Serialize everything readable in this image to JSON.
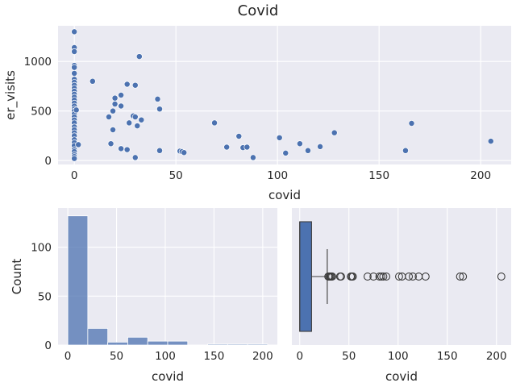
{
  "chart_data": [
    {
      "type": "scatter",
      "panel": "top",
      "title": "Covid",
      "xlabel": "covid",
      "ylabel": "er_visits",
      "xlim": [
        -8,
        215
      ],
      "ylim": [
        -40,
        1360
      ],
      "xticks": [
        0,
        50,
        100,
        150,
        200
      ],
      "yticks": [
        0,
        500,
        1000
      ],
      "color": "#4c72b0",
      "grid": true,
      "points": [
        [
          0,
          1300
        ],
        [
          0,
          1140
        ],
        [
          0,
          1100
        ],
        [
          0,
          960
        ],
        [
          0,
          940
        ],
        [
          0,
          880
        ],
        [
          0,
          820
        ],
        [
          0,
          790
        ],
        [
          0,
          760
        ],
        [
          0,
          730
        ],
        [
          0,
          700
        ],
        [
          0,
          670
        ],
        [
          0,
          640
        ],
        [
          0,
          610
        ],
        [
          0,
          580
        ],
        [
          0,
          550
        ],
        [
          0,
          520
        ],
        [
          0,
          500
        ],
        [
          0,
          470
        ],
        [
          0,
          440
        ],
        [
          0,
          410
        ],
        [
          0,
          380
        ],
        [
          0,
          340
        ],
        [
          0,
          310
        ],
        [
          0,
          280
        ],
        [
          0,
          250
        ],
        [
          0,
          210
        ],
        [
          0,
          180
        ],
        [
          0,
          150
        ],
        [
          0,
          110
        ],
        [
          0,
          90
        ],
        [
          0,
          60
        ],
        [
          0,
          40
        ],
        [
          0,
          20
        ],
        [
          1,
          510
        ],
        [
          2,
          160
        ],
        [
          9,
          800
        ],
        [
          17,
          440
        ],
        [
          18,
          170
        ],
        [
          19,
          310
        ],
        [
          19,
          500
        ],
        [
          20,
          570
        ],
        [
          20,
          630
        ],
        [
          23,
          550
        ],
        [
          23,
          660
        ],
        [
          23,
          120
        ],
        [
          26,
          110
        ],
        [
          26,
          770
        ],
        [
          27,
          380
        ],
        [
          29,
          450
        ],
        [
          30,
          440
        ],
        [
          30,
          760
        ],
        [
          30,
          30
        ],
        [
          31,
          350
        ],
        [
          32,
          1050
        ],
        [
          33,
          410
        ],
        [
          41,
          620
        ],
        [
          42,
          520
        ],
        [
          42,
          100
        ],
        [
          52,
          95
        ],
        [
          53,
          90
        ],
        [
          54,
          80
        ],
        [
          69,
          380
        ],
        [
          75,
          135
        ],
        [
          81,
          245
        ],
        [
          83,
          130
        ],
        [
          85,
          135
        ],
        [
          88,
          30
        ],
        [
          101,
          230
        ],
        [
          104,
          75
        ],
        [
          111,
          170
        ],
        [
          115,
          100
        ],
        [
          121,
          140
        ],
        [
          128,
          280
        ],
        [
          163,
          100
        ],
        [
          166,
          375
        ],
        [
          205,
          195
        ]
      ]
    },
    {
      "type": "bar",
      "panel": "bottom-left",
      "subtype": "histogram",
      "xlabel": "covid",
      "ylabel": "Count",
      "xlim": [
        -10,
        215
      ],
      "ylim": [
        0,
        140
      ],
      "xticks": [
        0,
        50,
        100,
        150,
        200
      ],
      "yticks": [
        0,
        50,
        100
      ],
      "bin_edges": [
        0,
        20.5,
        41,
        61.5,
        82,
        102.5,
        123,
        143.5,
        164,
        184.5,
        205
      ],
      "values": [
        132,
        17,
        3,
        8,
        4,
        4,
        0,
        1,
        1,
        1
      ],
      "color": "#4c72b0"
    },
    {
      "type": "box",
      "panel": "bottom-right",
      "xlabel": "covid",
      "xlim": [
        -8,
        215
      ],
      "xticks": [
        0,
        50,
        100,
        150,
        200
      ],
      "color": "#4c72b0",
      "q1": 0,
      "median": 0,
      "q3": 12,
      "whisker_low": 0,
      "whisker_high": 28,
      "outliers": [
        29,
        30,
        31,
        32,
        33,
        41,
        42,
        52,
        53,
        54,
        69,
        75,
        81,
        83,
        85,
        88,
        101,
        104,
        111,
        115,
        121,
        128,
        163,
        166,
        205
      ]
    }
  ]
}
